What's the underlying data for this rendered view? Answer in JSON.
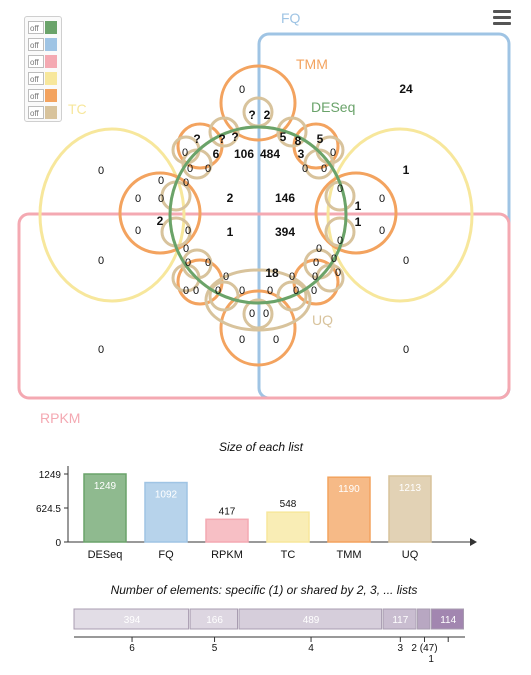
{
  "menu": {
    "icon": "hamburger-menu-icon"
  },
  "legend": {
    "items": [
      {
        "label": "off",
        "color": "#6aa36a"
      },
      {
        "label": "off",
        "color": "#9fc4e4"
      },
      {
        "label": "off",
        "color": "#f4a9b2"
      },
      {
        "label": "off",
        "color": "#f7e79c"
      },
      {
        "label": "off",
        "color": "#f3a35f"
      },
      {
        "label": "off",
        "color": "#d8c39c"
      }
    ]
  },
  "venn": {
    "sets": [
      {
        "name": "DESeq",
        "color": "#6aa36a"
      },
      {
        "name": "FQ",
        "color": "#9fc4e4"
      },
      {
        "name": "RPKM",
        "color": "#f4a9b2"
      },
      {
        "name": "TC",
        "color": "#f7e79c"
      },
      {
        "name": "TMM",
        "color": "#f3a35f"
      },
      {
        "name": "UQ",
        "color": "#d8c39c"
      }
    ],
    "counts": [
      "0",
      "24",
      "2",
      "?",
      "0",
      "?",
      "?",
      "?",
      "6",
      "106",
      "484",
      "5",
      "8",
      "3",
      "5",
      "0",
      "0",
      "0",
      "0",
      "0",
      "0",
      "0",
      "0",
      "0",
      "0",
      "0",
      "2",
      "146",
      "1",
      "0",
      "0",
      "2",
      "0",
      "1",
      "394",
      "1",
      "0",
      "0",
      "1",
      "0",
      "0",
      "0",
      "0",
      "0",
      "0",
      "0",
      "0",
      "0",
      "0",
      "18",
      "0",
      "0",
      "0",
      "0",
      "0",
      "0",
      "0",
      "0",
      "0",
      "0",
      "0",
      "0",
      "0",
      "0",
      "0"
    ]
  },
  "chart_data": [
    {
      "type": "bar",
      "title": "Size of each list",
      "categories": [
        "DESeq",
        "FQ",
        "RPKM",
        "TC",
        "TMM",
        "UQ"
      ],
      "values": [
        1249,
        1092,
        417,
        548,
        1190,
        1213
      ],
      "colors": [
        "#6aa36a",
        "#9fc4e4",
        "#f4a9b2",
        "#f7e79c",
        "#f3a35f",
        "#d8c39c"
      ],
      "yticks": [
        "0",
        "624.5",
        "1249"
      ],
      "ylim": [
        0,
        1249
      ]
    },
    {
      "type": "bar",
      "title": "Number of elements: specific (1) or shared by 2, 3, ... lists",
      "categories": [
        "6",
        "5",
        "4",
        "3",
        "2 (47)",
        "1"
      ],
      "values": [
        394,
        166,
        489,
        117,
        47,
        114
      ],
      "segment_labels": [
        "394",
        "166",
        "489",
        "117",
        "",
        "114"
      ]
    }
  ]
}
